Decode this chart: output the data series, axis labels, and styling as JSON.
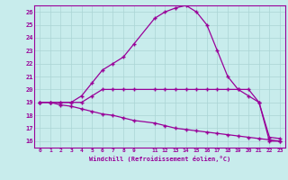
{
  "xlabel": "Windchill (Refroidissement éolien,°C)",
  "background_color": "#c8ecec",
  "grid_color": "#aad4d4",
  "line_color": "#990099",
  "xlim": [
    -0.5,
    23.5
  ],
  "ylim": [
    15.5,
    26.5
  ],
  "xticks": [
    0,
    1,
    2,
    3,
    4,
    5,
    6,
    7,
    8,
    9,
    11,
    12,
    13,
    14,
    15,
    16,
    17,
    18,
    19,
    20,
    21,
    22,
    23
  ],
  "yticks": [
    16,
    17,
    18,
    19,
    20,
    21,
    22,
    23,
    24,
    25,
    26
  ],
  "line2_x": [
    0,
    1,
    2,
    3,
    4,
    5,
    6,
    7,
    8,
    9,
    11,
    12,
    13,
    14,
    15,
    16,
    17,
    18,
    19,
    20,
    21,
    22,
    23
  ],
  "line2_y": [
    19,
    19,
    19,
    19,
    19.5,
    20.5,
    21.5,
    22,
    22.5,
    23.5,
    25.5,
    26,
    26.3,
    26.5,
    26,
    25,
    23,
    21,
    20,
    19.5,
    19,
    16,
    16
  ],
  "line1_x": [
    0,
    1,
    2,
    3,
    4,
    5,
    6,
    7,
    8,
    9,
    11,
    12,
    13,
    14,
    15,
    16,
    17,
    18,
    19,
    20,
    21,
    22,
    23
  ],
  "line1_y": [
    19,
    19,
    19,
    19,
    19,
    19.5,
    20,
    20,
    20,
    20,
    20,
    20,
    20,
    20,
    20,
    20,
    20,
    20,
    20,
    20,
    19,
    16.3,
    16.2
  ],
  "line3_x": [
    0,
    1,
    2,
    3,
    4,
    5,
    6,
    7,
    8,
    9,
    11,
    12,
    13,
    14,
    15,
    16,
    17,
    18,
    19,
    20,
    21,
    22,
    23
  ],
  "line3_y": [
    19,
    19,
    18.8,
    18.7,
    18.5,
    18.3,
    18.1,
    18.0,
    17.8,
    17.6,
    17.4,
    17.2,
    17.0,
    16.9,
    16.8,
    16.7,
    16.6,
    16.5,
    16.4,
    16.3,
    16.2,
    16.1,
    16.0
  ]
}
